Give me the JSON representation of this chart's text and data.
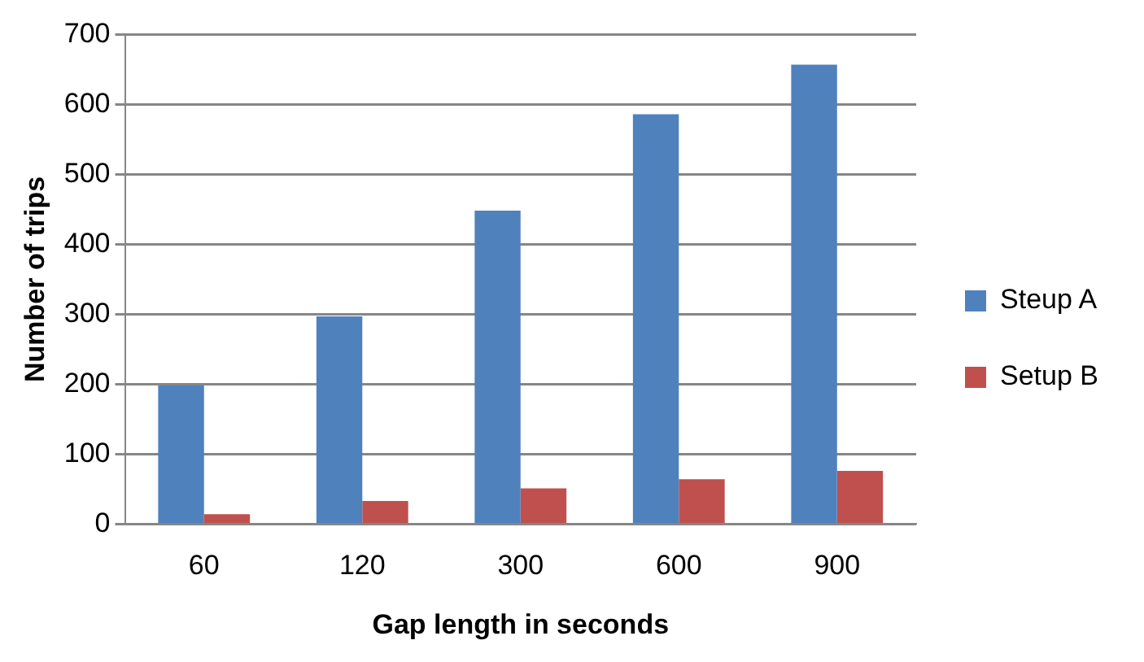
{
  "chart_data": {
    "type": "bar",
    "xlabel": "Gap length in seconds",
    "ylabel": "Number of trips",
    "categories": [
      "60",
      "120",
      "300",
      "600",
      "900"
    ],
    "series": [
      {
        "name": "Steup A",
        "color": "#4f81bd",
        "values": [
          198,
          297,
          448,
          586,
          657
        ]
      },
      {
        "name": "Setup B",
        "color": "#c0504d",
        "values": [
          14,
          33,
          51,
          64,
          76
        ]
      }
    ],
    "ylim": [
      0,
      700
    ],
    "yticks": [
      0,
      100,
      200,
      300,
      400,
      500,
      600,
      700
    ],
    "grid": "y",
    "legend": "right"
  }
}
